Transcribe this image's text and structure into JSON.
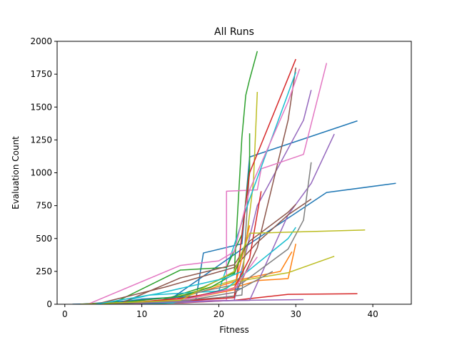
{
  "chart_data": {
    "type": "line",
    "title": "All Runs",
    "xlabel": "Fitness",
    "ylabel": "Evaluation Count",
    "xlim": [
      -1,
      45
    ],
    "ylim": [
      0,
      2000
    ],
    "xticks": [
      0,
      10,
      20,
      30,
      40
    ],
    "yticks": [
      0,
      250,
      500,
      750,
      1000,
      1250,
      1500,
      1750,
      2000
    ],
    "grid": false,
    "legend": "none",
    "series": [
      {
        "color": "#1f77b4",
        "x": [
          1,
          10,
          17,
          18,
          23,
          24,
          38
        ],
        "y": [
          0,
          10,
          30,
          390,
          460,
          1120,
          1395
        ]
      },
      {
        "color": "#ff7f0e",
        "x": [
          2,
          12,
          20,
          25,
          29,
          30
        ],
        "y": [
          0,
          20,
          90,
          180,
          195,
          460
        ]
      },
      {
        "color": "#2ca02c",
        "x": [
          2,
          12,
          18,
          22,
          23,
          23.5,
          24,
          25
        ],
        "y": [
          0,
          20,
          130,
          240,
          1270,
          1590,
          1710,
          1925
        ]
      },
      {
        "color": "#d62728",
        "x": [
          3,
          15,
          22,
          29,
          38
        ],
        "y": [
          0,
          10,
          30,
          75,
          80
        ]
      },
      {
        "color": "#9467bd",
        "x": [
          4,
          14,
          22,
          25,
          31,
          32
        ],
        "y": [
          0,
          10,
          30,
          750,
          1400,
          1630
        ]
      },
      {
        "color": "#8c564b",
        "x": [
          5,
          14,
          22,
          25,
          29,
          30
        ],
        "y": [
          0,
          20,
          60,
          430,
          1400,
          1800
        ]
      },
      {
        "color": "#e377c2",
        "x": [
          4,
          12,
          21,
          21,
          25,
          25.5,
          31,
          34
        ],
        "y": [
          0,
          20,
          30,
          860,
          870,
          1030,
          1140,
          1835
        ]
      },
      {
        "color": "#7f7f7f",
        "x": [
          5,
          14,
          23,
          24
        ],
        "y": [
          0,
          10,
          70,
          1040
        ]
      },
      {
        "color": "#bcbd22",
        "x": [
          3,
          13,
          23,
          24.5,
          25
        ],
        "y": [
          0,
          30,
          200,
          930,
          1615
        ]
      },
      {
        "color": "#17becf",
        "x": [
          6,
          11,
          20,
          24,
          30
        ],
        "y": [
          0,
          70,
          100,
          800,
          1765
        ]
      },
      {
        "color": "#1f77b4",
        "x": [
          2,
          14,
          24,
          34,
          43
        ],
        "y": [
          0,
          50,
          460,
          850,
          920
        ]
      },
      {
        "color": "#ff7f0e",
        "x": [
          5,
          14,
          23,
          28,
          29.5
        ],
        "y": [
          0,
          30,
          190,
          250,
          400
        ]
      },
      {
        "color": "#2ca02c",
        "x": [
          6,
          15,
          21,
          23,
          24,
          24
        ],
        "y": [
          0,
          260,
          280,
          530,
          1040,
          1300
        ]
      },
      {
        "color": "#d62728",
        "x": [
          4,
          14,
          22,
          24,
          30
        ],
        "y": [
          0,
          20,
          50,
          1000,
          1865
        ]
      },
      {
        "color": "#9467bd",
        "x": [
          3,
          15,
          24,
          29,
          32,
          35
        ],
        "y": [
          0,
          20,
          30,
          680,
          920,
          1295
        ]
      },
      {
        "color": "#8c564b",
        "x": [
          4,
          13,
          22,
          25,
          29,
          32
        ],
        "y": [
          0,
          130,
          280,
          470,
          680,
          800
        ]
      },
      {
        "color": "#e377c2",
        "x": [
          3,
          15,
          20,
          22,
          24,
          29,
          30.5
        ],
        "y": [
          0,
          295,
          330,
          400,
          870,
          1540,
          1790
        ]
      },
      {
        "color": "#7f7f7f",
        "x": [
          4,
          12,
          18,
          23,
          29,
          31,
          32
        ],
        "y": [
          0,
          20,
          100,
          160,
          420,
          640,
          1080
        ]
      },
      {
        "color": "#bcbd22",
        "x": [
          3,
          14,
          20,
          23,
          29,
          35
        ],
        "y": [
          0,
          10,
          100,
          180,
          240,
          365
        ]
      },
      {
        "color": "#17becf",
        "x": [
          5,
          14,
          21,
          29,
          30
        ],
        "y": [
          0,
          10,
          120,
          500,
          585
        ]
      },
      {
        "color": "#1f77b4",
        "x": [
          6,
          10,
          17,
          20,
          23
        ],
        "y": [
          0,
          40,
          60,
          100,
          120
        ]
      },
      {
        "color": "#ff7f0e",
        "x": [
          4,
          16,
          22,
          24
        ],
        "y": [
          0,
          40,
          110,
          600
        ]
      },
      {
        "color": "#2ca02c",
        "x": [
          5,
          15,
          19,
          22,
          23.5
        ],
        "y": [
          0,
          60,
          130,
          230,
          460
        ]
      },
      {
        "color": "#d62728",
        "x": [
          6,
          16,
          22,
          24,
          25.5
        ],
        "y": [
          0,
          50,
          120,
          350,
          860
        ]
      },
      {
        "color": "#9467bd",
        "x": [
          7,
          15,
          23,
          31
        ],
        "y": [
          0,
          20,
          30,
          35
        ]
      },
      {
        "color": "#8c564b",
        "x": [
          7,
          15,
          22,
          24,
          29,
          30
        ],
        "y": [
          0,
          200,
          300,
          480,
          700,
          760
        ]
      },
      {
        "color": "#e377c2",
        "x": [
          8,
          16,
          22,
          25
        ],
        "y": [
          0,
          40,
          120,
          360
        ]
      },
      {
        "color": "#7f7f7f",
        "x": [
          6,
          16,
          22,
          27
        ],
        "y": [
          0,
          30,
          90,
          250
        ]
      },
      {
        "color": "#bcbd22",
        "x": [
          2,
          15,
          22,
          24,
          39
        ],
        "y": [
          0,
          30,
          250,
          540,
          565
        ]
      },
      {
        "color": "#17becf",
        "x": [
          4,
          12,
          21,
          23
        ],
        "y": [
          0,
          80,
          200,
          250
        ]
      }
    ]
  }
}
